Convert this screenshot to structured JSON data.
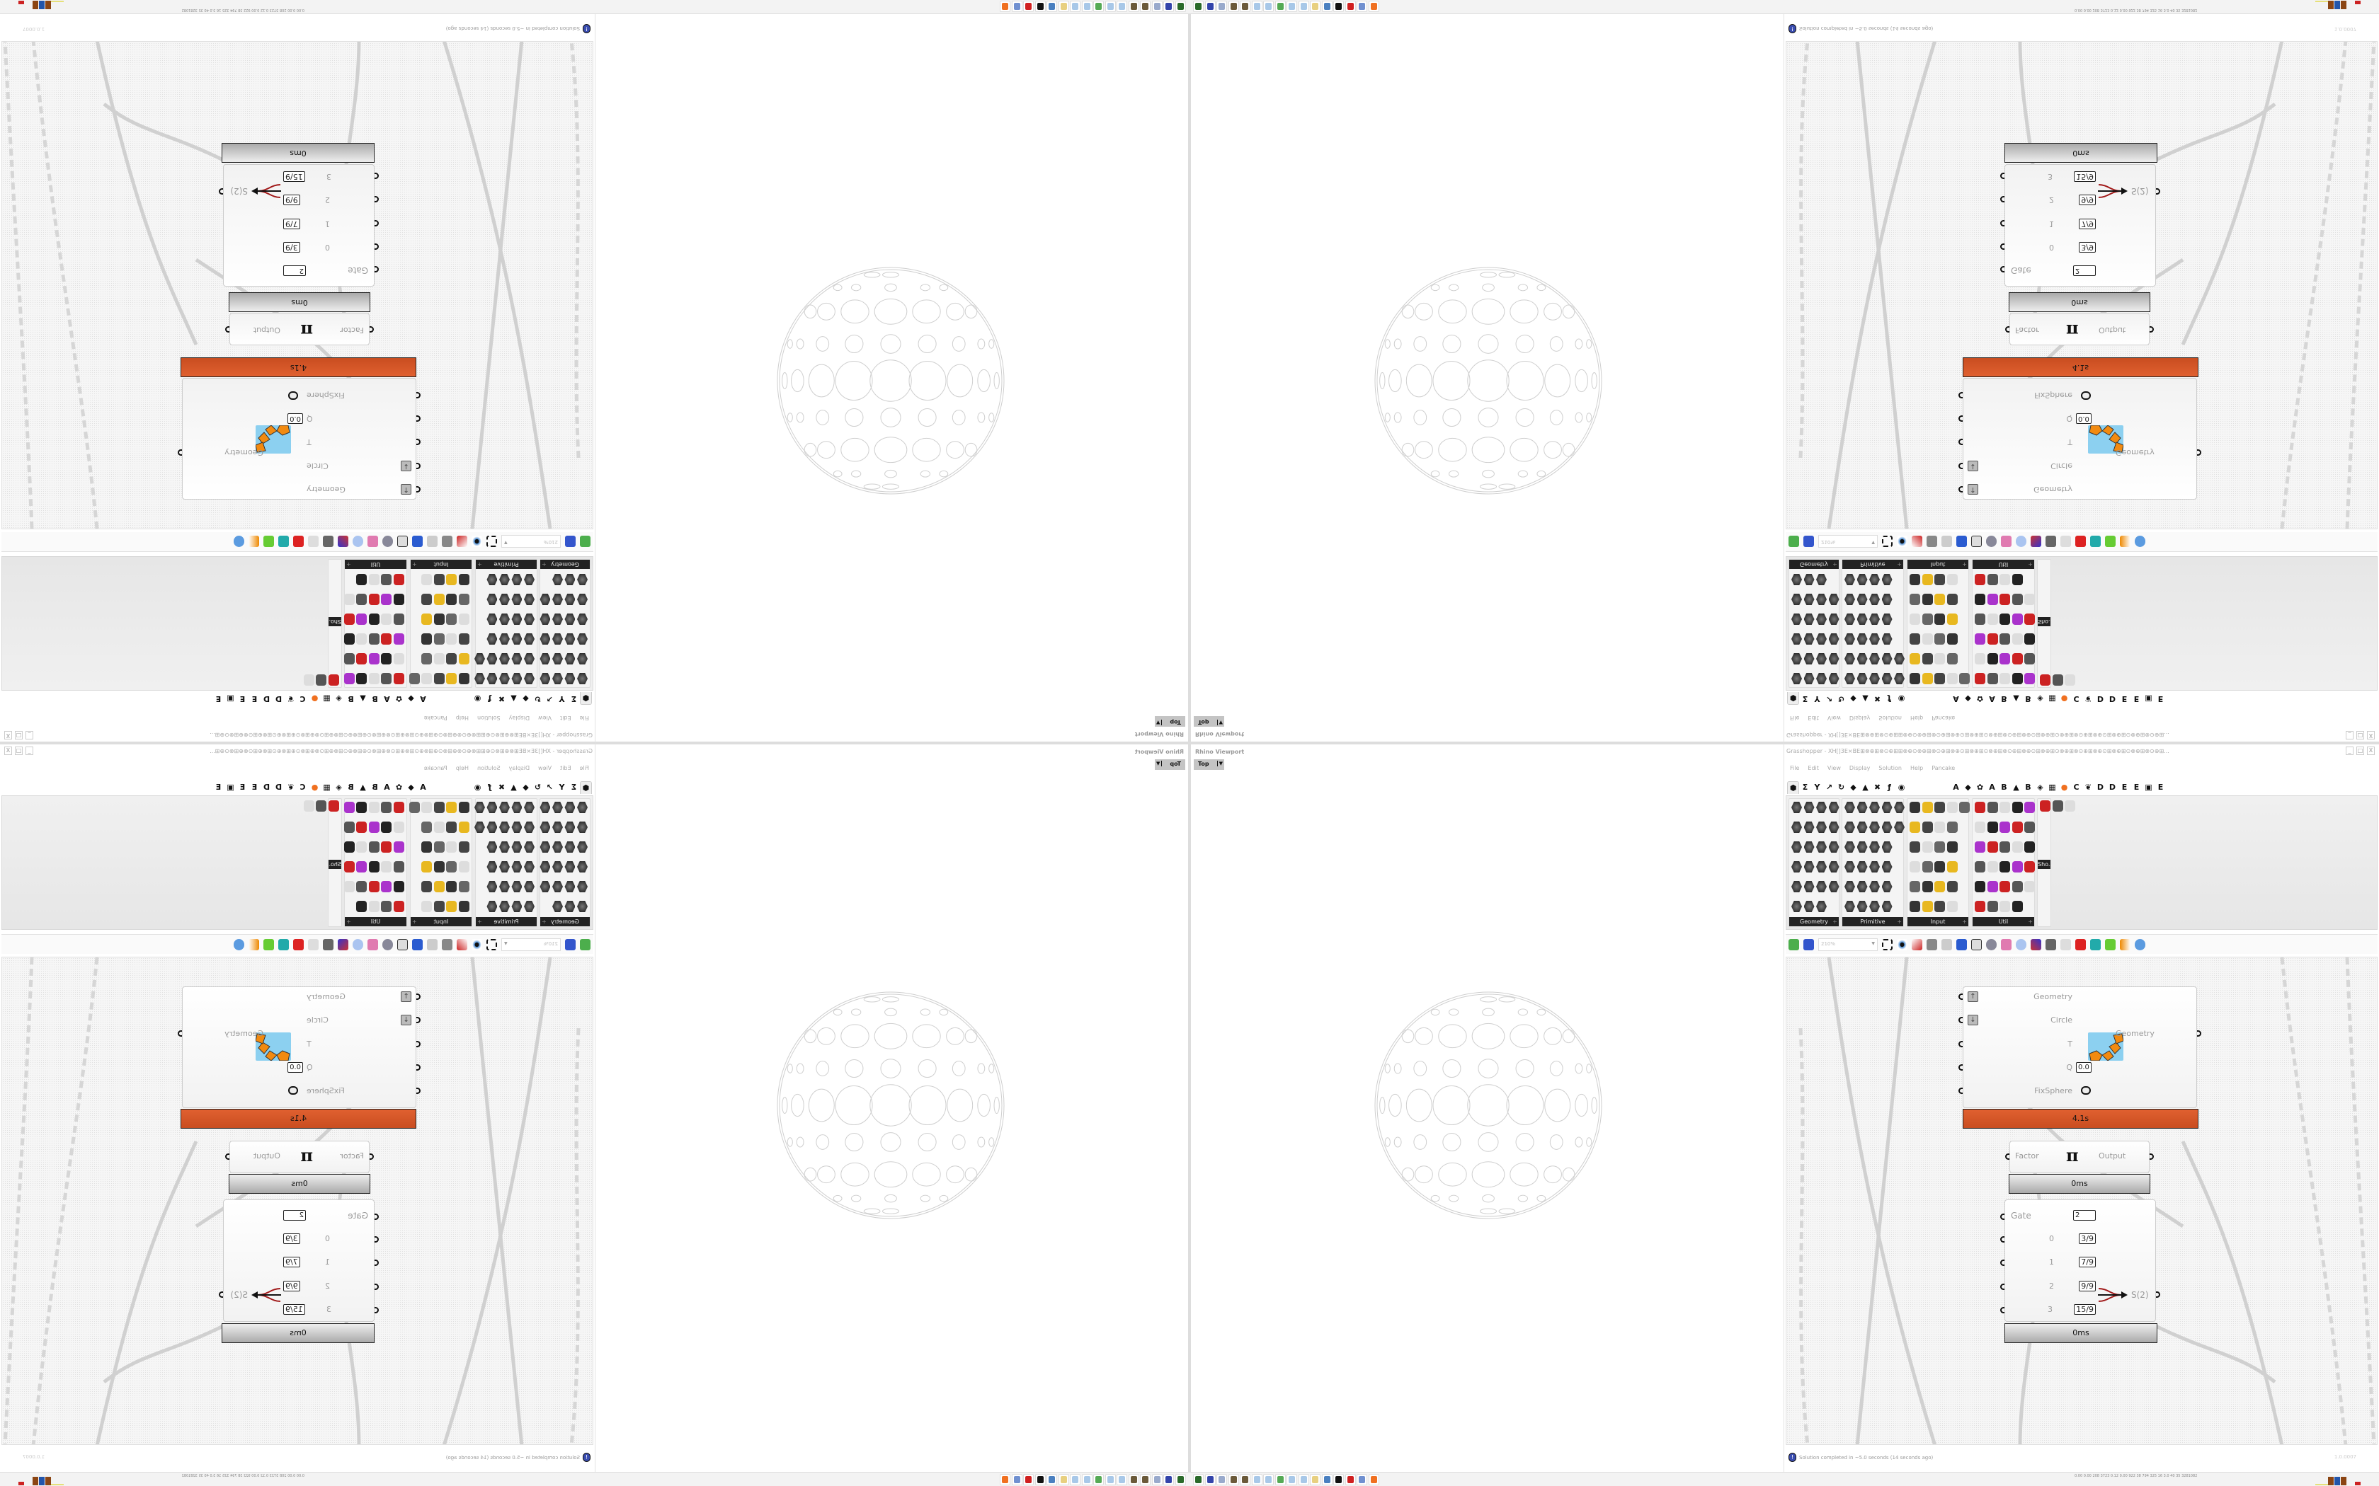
{
  "rhino": {
    "title": "Rhino Viewport",
    "view": "Top",
    "dropdown_icon": "triangle-down-icon"
  },
  "grasshopper": {
    "title": "Grasshopper - XH[]3E×BE⊞⊗⊕⊞⊗⊙⊕⊞⊞⊗⊕⊙⊗⊕⊞⊗⊙⊕⊞⊗⊕⊙⊞⊗⊕⊞⊙⊗⊕⊞⊗⊙⊕⊞⊗⊕⊙⊞⊗⊕⊞⊙⊗⊕⊞⊗⊙⊕⊞⊗⊕⊙⊞⊗⊕⊞⊙⊗⊕⊞⊗⊙⊕⊞...",
    "window_buttons": [
      "_",
      "□",
      "X"
    ],
    "menu": [
      "File",
      "Edit",
      "View",
      "Display",
      "Solution",
      "Help",
      "Pancake"
    ],
    "tabs_icons": [
      "hexagon",
      "Σ",
      "Y",
      "↗",
      "↻",
      "◆",
      "▲",
      "✖",
      "ƒ",
      "◉"
    ],
    "tabs_letters": [
      "A",
      "◆",
      "✿",
      "A",
      "B",
      "▲",
      "B",
      "◈",
      "▦",
      "●",
      "C",
      "❦",
      "D",
      "D",
      "E",
      "E",
      "▣",
      "E"
    ],
    "panel_groups": [
      {
        "label": "Geometry",
        "icon_rows": [
          4,
          4,
          4,
          4,
          4,
          3
        ]
      },
      {
        "label": "Primitive",
        "icon_rows": [
          5,
          5,
          4,
          4,
          4,
          4
        ]
      },
      {
        "label": "Input",
        "icon_rows": [
          5,
          4,
          4,
          4,
          4,
          4
        ]
      },
      {
        "label": "Util",
        "icon_rows": [
          5,
          5,
          5,
          5,
          5,
          4
        ]
      },
      {
        "label": "Sho..."
      }
    ],
    "toolbar": {
      "zoom": "210%"
    },
    "canvas": {
      "kangaroo": {
        "inputs": [
          "Geometry",
          "Circle",
          "T",
          "Q",
          "FixSphere"
        ],
        "q_value": "0.0",
        "output": "Geometry",
        "time": "4.1s",
        "time_color": "#d6582a"
      },
      "pi": {
        "input": "Factor",
        "symbol": "π",
        "output": "Output",
        "time": "0ms"
      },
      "gate": {
        "gate_label": "Gate",
        "gate_value": "2",
        "inputs": [
          {
            "index": "0",
            "value": "3/9"
          },
          {
            "index": "1",
            "value": "7/9"
          },
          {
            "index": "2",
            "value": "9/9"
          },
          {
            "index": "3",
            "value": "15/9"
          }
        ],
        "output": "S(2)",
        "time": "0ms"
      }
    },
    "status": {
      "message": "Solution completed in ~5.0 seconds (14 seconds ago)",
      "version": "1.0.0007",
      "icon": "info-icon"
    }
  },
  "taskbar": {
    "app_icons": [
      "terminal",
      "floppy-64",
      "notepad",
      "gear",
      "gear",
      "notepad",
      "notepad",
      "monitor",
      "notepad",
      "notepad",
      "folder",
      "network",
      "cow",
      "antivirus",
      "calculator",
      "firefox"
    ],
    "tray_text": "0.00 0.00 208 3723 0.12 0.00 922 38 794 325 16 3.0 40 35 3281082"
  }
}
